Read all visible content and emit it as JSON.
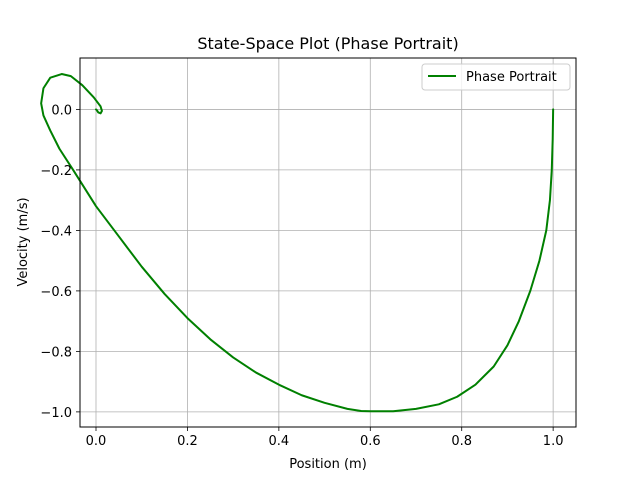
{
  "chart_data": {
    "type": "line",
    "title": "State-Space Plot (Phase Portrait)",
    "xlabel": "Position (m)",
    "ylabel": "Velocity (m/s)",
    "xlim": [
      -0.035,
      1.05
    ],
    "ylim": [
      -1.05,
      0.17
    ],
    "xticks": [
      0.0,
      0.2,
      0.4,
      0.6,
      0.8,
      1.0
    ],
    "xtick_labels": [
      "0.0",
      "0.2",
      "0.4",
      "0.6",
      "0.8",
      "1.0"
    ],
    "yticks": [
      0.0,
      -0.2,
      -0.4,
      -0.6,
      -0.8,
      -1.0
    ],
    "ytick_labels": [
      "0.0",
      "−0.2",
      "−0.4",
      "−0.6",
      "−0.8",
      "−1.0"
    ],
    "grid": true,
    "legend_position": "top-right",
    "series": [
      {
        "name": "Phase Portrait",
        "color": "#008000",
        "x": [
          1.0,
          0.999,
          0.997,
          0.993,
          0.985,
          0.97,
          0.95,
          0.925,
          0.9,
          0.87,
          0.83,
          0.79,
          0.75,
          0.7,
          0.65,
          0.6,
          0.58,
          0.55,
          0.5,
          0.45,
          0.4,
          0.35,
          0.3,
          0.25,
          0.2,
          0.15,
          0.1,
          0.05,
          0.0,
          -0.05,
          -0.08,
          -0.1,
          -0.115,
          -0.12,
          -0.115,
          -0.1,
          -0.075,
          -0.055,
          -0.03,
          -0.005,
          0.01,
          0.013,
          0.01,
          0.005,
          0.002,
          0.0
        ],
        "y": [
          0.0,
          -0.1,
          -0.2,
          -0.3,
          -0.4,
          -0.5,
          -0.6,
          -0.7,
          -0.78,
          -0.85,
          -0.91,
          -0.95,
          -0.975,
          -0.99,
          -0.998,
          -0.998,
          -0.997,
          -0.99,
          -0.97,
          -0.945,
          -0.91,
          -0.87,
          -0.82,
          -0.76,
          -0.69,
          -0.61,
          -0.52,
          -0.42,
          -0.32,
          -0.2,
          -0.13,
          -0.07,
          -0.02,
          0.02,
          0.07,
          0.105,
          0.117,
          0.11,
          0.08,
          0.04,
          0.01,
          -0.005,
          -0.013,
          -0.01,
          -0.003,
          0.0
        ]
      }
    ]
  }
}
